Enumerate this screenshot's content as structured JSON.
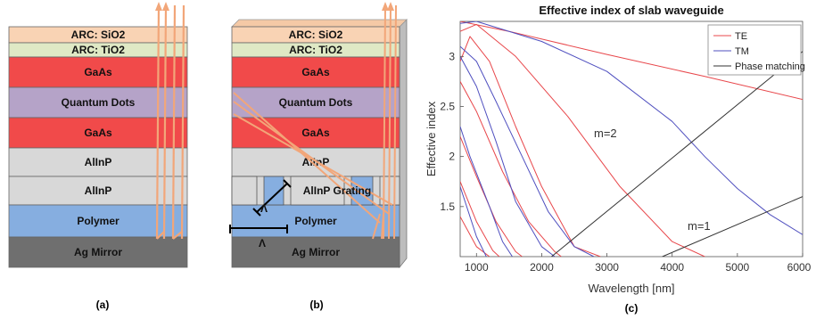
{
  "panel_a": {
    "caption": "(a)",
    "layers": [
      {
        "label": "ARC: SiO2",
        "color": "#f9d3b4"
      },
      {
        "label": "ARC: TiO2",
        "color": "#dfe9c5"
      },
      {
        "label": "GaAs",
        "color": "#f14a4a"
      },
      {
        "label": "Quantum Dots",
        "color": "#b5a3c8"
      },
      {
        "label": "GaAs",
        "color": "#f14a4a"
      },
      {
        "label": "AlInP",
        "color": "#d8d8d8"
      },
      {
        "label": "AlInP",
        "color": "#d8d8d8"
      },
      {
        "label": "Polymer",
        "color": "#86aee0"
      },
      {
        "label": "Ag Mirror",
        "color": "#6f6f6f"
      }
    ]
  },
  "panel_b": {
    "caption": "(b)",
    "layers": [
      {
        "label": "ARC: SiO2",
        "color": "#f9d3b4"
      },
      {
        "label": "ARC: TiO2",
        "color": "#dfe9c5"
      },
      {
        "label": "GaAs",
        "color": "#f14a4a"
      },
      {
        "label": "Quantum Dots",
        "color": "#b5a3c8"
      },
      {
        "label": "GaAs",
        "color": "#f14a4a"
      },
      {
        "label": "AlInP",
        "color": "#d8d8d8"
      },
      {
        "label": "AlInP Grating",
        "color": "#d8d8d8"
      },
      {
        "label": "Polymer",
        "color": "#86aee0"
      },
      {
        "label": "Ag Mirror",
        "color": "#6f6f6f"
      }
    ],
    "period_symbol": "Λ"
  },
  "panel_c": {
    "caption": "(c)"
  },
  "chart_data": {
    "type": "line",
    "title": "Effective index of slab waveguide",
    "xlabel": "Wavelength [nm]",
    "ylabel": "Effective index",
    "xlim": [
      750,
      6000
    ],
    "ylim": [
      1.0,
      3.35
    ],
    "xticks": [
      1000,
      2000,
      3000,
      4000,
      5000,
      6000
    ],
    "yticks": [
      1.5,
      2,
      2.5,
      3
    ],
    "legend": [
      "TE",
      "TM",
      "Phase matching"
    ],
    "legend_position": "top-right",
    "colors": {
      "TE": "#e8474b",
      "TM": "#4f4fbf",
      "Phase matching": "#333333"
    },
    "annotations": [
      "m=2",
      "m=1"
    ],
    "series": [
      {
        "name": "TE",
        "x": [
          750,
          1500,
          3000,
          4500,
          6000
        ],
        "y": [
          3.35,
          3.25,
          3.02,
          2.8,
          2.57
        ]
      },
      {
        "name": "TM",
        "x": [
          750,
          1000,
          2000,
          3000,
          4000,
          4500,
          5000,
          5500,
          6000
        ],
        "y": [
          3.33,
          3.35,
          3.15,
          2.85,
          2.35,
          2.0,
          1.68,
          1.42,
          1.22
        ]
      },
      {
        "x": [
          750,
          1000,
          1600,
          2400,
          3200,
          4000,
          4500
        ],
        "y": [
          3.25,
          3.32,
          3.0,
          2.4,
          1.7,
          1.15,
          1.0
        ]
      },
      {
        "x": [
          750,
          900,
          1200,
          1600,
          2000,
          2500,
          2900
        ],
        "y": [
          2.95,
          3.2,
          2.95,
          2.3,
          1.7,
          1.1,
          1.0
        ]
      },
      {
        "x": [
          750,
          1000,
          1400,
          1800,
          2200,
          2300
        ],
        "y": [
          2.75,
          2.45,
          1.85,
          1.35,
          1.05,
          1.0
        ]
      },
      {
        "x": [
          750,
          1000,
          1300,
          1600,
          1700
        ],
        "y": [
          2.2,
          1.8,
          1.35,
          1.05,
          1.0
        ]
      },
      {
        "x": [
          750,
          1000,
          1250,
          1350
        ],
        "y": [
          1.75,
          1.35,
          1.06,
          1.0
        ]
      },
      {
        "x": [
          750,
          1000,
          1200
        ],
        "y": [
          1.4,
          1.1,
          1.0
        ]
      },
      {
        "x": [
          750,
          1000,
          1300,
          1600,
          2000,
          2200
        ],
        "y": [
          3.0,
          2.7,
          2.15,
          1.55,
          1.1,
          1.0
        ]
      },
      {
        "x": [
          750,
          1000,
          1300,
          1700,
          2100,
          2500,
          2800
        ],
        "y": [
          3.1,
          2.95,
          2.55,
          2.0,
          1.45,
          1.1,
          1.0
        ]
      },
      {
        "x": [
          750,
          900,
          1200,
          1400,
          1550
        ],
        "y": [
          2.3,
          2.0,
          1.5,
          1.15,
          1.0
        ]
      },
      {
        "x": [
          750,
          1000,
          1150
        ],
        "y": [
          1.7,
          1.2,
          1.0
        ]
      },
      {
        "name": "Phase matching",
        "x": [
          2150,
          6000
        ],
        "y": [
          1.0,
          3.05
        ]
      },
      {
        "name": "Phase matching",
        "x": [
          3850,
          6000
        ],
        "y": [
          1.0,
          1.6
        ]
      }
    ]
  }
}
